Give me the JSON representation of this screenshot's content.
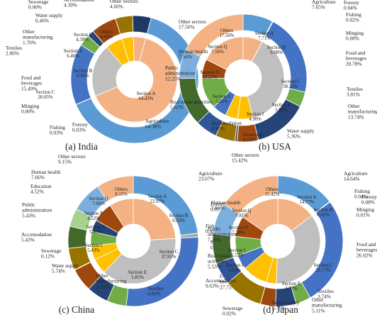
{
  "chart_data": [
    {
      "type": "pie",
      "caption": "(a)  India",
      "outer": [
        {
          "name": "Agriculture",
          "value": 64.38,
          "text": "Agriculture\n64.38%"
        },
        {
          "name": "Foresty",
          "value": 0.03,
          "text": "Foresty\n0.03%"
        },
        {
          "name": "Fishing",
          "value": 0.03,
          "text": "Fishing\n0.03%"
        },
        {
          "name": "Minging",
          "value": 0.0,
          "text": "Minging\n0.00%"
        },
        {
          "name": "Food and beverages",
          "value": 15.49,
          "text": "Food and\nbeverages\n15.49%"
        },
        {
          "name": "Textiles",
          "value": 2.86,
          "text": "Textiles\n2.86%"
        },
        {
          "name": "Other manufacturing",
          "value": 1.7,
          "text": "Other\nmanufacturing\n1.70%"
        },
        {
          "name": "Water supply",
          "value": 6.46,
          "text": "Water supply\n6.46%"
        },
        {
          "name": "Sewerage",
          "value": 0.0,
          "text": "Sewerage\n0.00%"
        },
        {
          "name": "Accomodation",
          "value": 4.39,
          "text": "Accomodation\n4.39%"
        },
        {
          "name": "Other Sectors",
          "value": 4.66,
          "text": "Other Sectors\n4.66%"
        }
      ],
      "inner": [
        {
          "name": "Section A",
          "value": 64.43,
          "text": "Section A\n64.43%"
        },
        {
          "name": "Section B",
          "value": 0.0,
          "text": "Section B\n0.00%"
        },
        {
          "name": "Section C",
          "value": 20.05,
          "text": "Section C\n20.05%"
        },
        {
          "name": "Section E",
          "value": 6.46,
          "text": "Section E\n6.46%"
        },
        {
          "name": "Section I",
          "value": 4.39,
          "text": "Section I\n4.39%"
        },
        {
          "name": "Others",
          "value": 4.66,
          "text": "Others\n4.66%"
        }
      ]
    },
    {
      "type": "pie",
      "caption": "(b)  USA",
      "outer": [
        {
          "name": "Agriculture",
          "value": 7.65,
          "text": "Agriculture\n7.65%"
        },
        {
          "name": "Foresty",
          "value": 0.04,
          "text": "Foresty\n0.04%"
        },
        {
          "name": "Fishing",
          "value": 0.02,
          "text": "Fishing\n0.02%"
        },
        {
          "name": "Minging",
          "value": 0.08,
          "text": "Minging\n0.08%"
        },
        {
          "name": "Food and beverages",
          "value": 20.78,
          "text": "Food and\nbeverages\n20.78%"
        },
        {
          "name": "Textiles",
          "value": 3.81,
          "text": "Textiles\n3.81%"
        },
        {
          "name": "Other manufacturing",
          "value": 13.74,
          "text": "Other\nmanufacturing\n13.74%"
        },
        {
          "name": "Water supply",
          "value": 5.36,
          "text": "Water supply\n5.36%"
        },
        {
          "name": "Sewerage",
          "value": 0.63,
          "text": "Sewerage\n0.63%"
        },
        {
          "name": "Accomodation",
          "value": 4.9,
          "text": "Accomodation\n4.90%"
        },
        {
          "name": "Real estate activities",
          "value": 5.62,
          "text": "Real estate activities\n5.62%"
        },
        {
          "name": "Public administration",
          "value": 12.25,
          "text": "Public\nadministration\n12.25%"
        },
        {
          "name": "Human health",
          "value": 7.56,
          "text": "Human health\n7.56%"
        },
        {
          "name": "Other sectors",
          "value": 17.56,
          "text": "Other sectors\n17.56%"
        }
      ],
      "inner": [
        {
          "name": "Section A",
          "value": 7.71,
          "text": "Section A\n7.71%"
        },
        {
          "name": "Section B",
          "value": 0.08,
          "text": "Section B\n0.08%"
        },
        {
          "name": "Section C",
          "value": 38.33,
          "text": "Section C\n38.33%"
        },
        {
          "name": "Section E",
          "value": 5.99,
          "text": "Section E\n5.99%"
        },
        {
          "name": "Section I",
          "value": 4.9,
          "text": "Section I\n4.90%"
        },
        {
          "name": "Section L",
          "value": 5.62,
          "text": "Section L\n5.62%"
        },
        {
          "name": "Section O",
          "value": 12.25,
          "text": "Section O\n12.25%"
        },
        {
          "name": "Section Q",
          "value": 7.56,
          "text": "Section Q\n7.56%"
        },
        {
          "name": "Others",
          "value": 17.56,
          "text": "Others\n17.56%"
        }
      ]
    },
    {
      "type": "pie",
      "caption": "(c) China",
      "outer": [
        {
          "name": "Agriculture",
          "value": 23.07,
          "text": "Agriculture\n23.07%"
        },
        {
          "name": "Foresty",
          "value": 0.01,
          "text": "Foresty\n0.01%"
        },
        {
          "name": "Fishing",
          "value": 0.88,
          "text": "Fishing\n0.88%"
        },
        {
          "name": "Minging",
          "value": 0.03,
          "text": "Minging\n0.03%"
        },
        {
          "name": "Food and beverages",
          "value": 27.73,
          "text": "Food and\nbeverages\n27.73%"
        },
        {
          "name": "Textiles",
          "value": 4.83,
          "text": "Textiles\n4.83%"
        },
        {
          "name": "Other manufacturing",
          "value": 5.39,
          "text": "Other\nmanufacturing\n5.39%"
        },
        {
          "name": "Water supply",
          "value": 5.74,
          "text": "Water supply\n5.74%"
        },
        {
          "name": "Sewerage",
          "value": 0.12,
          "text": "Sewerage\n0.12%"
        },
        {
          "name": "Accomodation",
          "value": 5.43,
          "text": "Accomodation\n5.43%"
        },
        {
          "name": "Public administration",
          "value": 5.43,
          "text": "Public\nadministration\n5.43%"
        },
        {
          "name": "Education",
          "value": 4.52,
          "text": "Education\n4.52%"
        },
        {
          "name": "Human health",
          "value": 7.66,
          "text": "Human health\n7.66%"
        },
        {
          "name": "Other sectors",
          "value": 9.15,
          "text": "Other sectors\n9.15%"
        }
      ],
      "inner": [
        {
          "name": "Section A",
          "value": 23.97,
          "text": "Section A\n23.97%"
        },
        {
          "name": "Section B",
          "value": 0.03,
          "text": "Section B\n0.03%"
        },
        {
          "name": "Section C",
          "value": 37.95,
          "text": "Section C\n37.95%"
        },
        {
          "name": "Section E",
          "value": 5.85,
          "text": "Section E\n5.85%"
        },
        {
          "name": "Section I",
          "value": 5.43,
          "text": "Section I\n5.43%"
        },
        {
          "name": "Section O",
          "value": 5.43,
          "text": "Section O\n5.43%"
        },
        {
          "name": "Section P",
          "value": 4.52,
          "text": "Section P\n4.52%"
        },
        {
          "name": "Section Q",
          "value": 7.66,
          "text": "Section Q\n7.66%"
        },
        {
          "name": "Others",
          "value": 9.15,
          "text": "Others\n9.15%"
        }
      ]
    },
    {
      "type": "pie",
      "caption": "(d) Japan",
      "outer": [
        {
          "name": "Agriculture",
          "value": 14.64,
          "text": "Agriculture\n14.64%"
        },
        {
          "name": "Fishing",
          "value": 0.04,
          "text": "Fishing\n0.04%"
        },
        {
          "name": "Foresty",
          "value": 0.08,
          "text": "Foresty\n0.08%"
        },
        {
          "name": "Minging",
          "value": 0.01,
          "text": "Minging\n0.01%"
        },
        {
          "name": "Food and beverages",
          "value": 26.92,
          "text": "Food and\nbeverages\n26.92%"
        },
        {
          "name": "Textiles",
          "value": 3.74,
          "text": "Textiles\n3.74%"
        },
        {
          "name": "Other manufacturing",
          "value": 5.11,
          "text": "Other\nmanufacturing\n5.11%"
        },
        {
          "name": "Water supply",
          "value": 3.75,
          "text": "Water supply\n3.75%"
        },
        {
          "name": "Sewerage",
          "value": 0.02,
          "text": "Sewerage\n0.02%"
        },
        {
          "name": "Accomodation",
          "value": 9.63,
          "text": "Accomodation\n9.63%"
        },
        {
          "name": "Real estate activities",
          "value": 5.53,
          "text": "Real estate\nactivities\n5.53%"
        },
        {
          "name": "Public administration",
          "value": 7.28,
          "text": "Public\nadministration\n7.28%"
        },
        {
          "name": "Human health",
          "value": 7.81,
          "text": "Human health\n7.81%"
        },
        {
          "name": "Other sectors",
          "value": 15.42,
          "text": "Other sectors\n15.42%"
        }
      ],
      "inner": [
        {
          "name": "Section A",
          "value": 14.77,
          "text": "Section A\n14.77%"
        },
        {
          "name": "Section B",
          "value": 0.01,
          "text": "Section B\n0.01%"
        },
        {
          "name": "Section C",
          "value": 35.77,
          "text": "Section C\n35.77%"
        },
        {
          "name": "Section E",
          "value": 3.77,
          "text": "Section E\n3.77%"
        },
        {
          "name": "Section I",
          "value": 9.63,
          "text": "Section I\n9.63%"
        },
        {
          "name": "Section L",
          "value": 5.53,
          "text": "Section L\n5.53%"
        },
        {
          "name": "Section O",
          "value": 7.28,
          "text": "Section O\n7.28%"
        },
        {
          "name": "Section Q",
          "value": 7.81,
          "text": "Section Q\n7.81%"
        },
        {
          "name": "Others",
          "value": 15.42,
          "text": "Others\n15.42%"
        }
      ]
    }
  ],
  "colors": {
    "Agriculture": "#5b9bd5",
    "Foresty": "#f4b183",
    "Fishing": "#a5a5a5",
    "Minging": "#ffc000",
    "Food and beverages": "#4472c4",
    "Textiles": "#70ad47",
    "Other manufacturing": "#264478",
    "Water supply": "#9e480e",
    "Sewerage": "#636363",
    "Accomodation": "#997300",
    "Real estate activities": "#2f5597",
    "Public administration": "#43682b",
    "Human health": "#7cafdd",
    "Education": "#a9d18e",
    "Other sectors": "#f4b183",
    "Other Sectors": "#1f3864",
    "Section A": "#f4b183",
    "Section B": "#a5a5a5",
    "Section C": "#bfbfbf",
    "Section E": "#ffc000",
    "Section I": "#ffc000",
    "Section L": "#4472c4",
    "Section O": "#70ad47",
    "Section P": "#264478",
    "Section Q": "#9e480e",
    "Others": "#f4b183"
  }
}
